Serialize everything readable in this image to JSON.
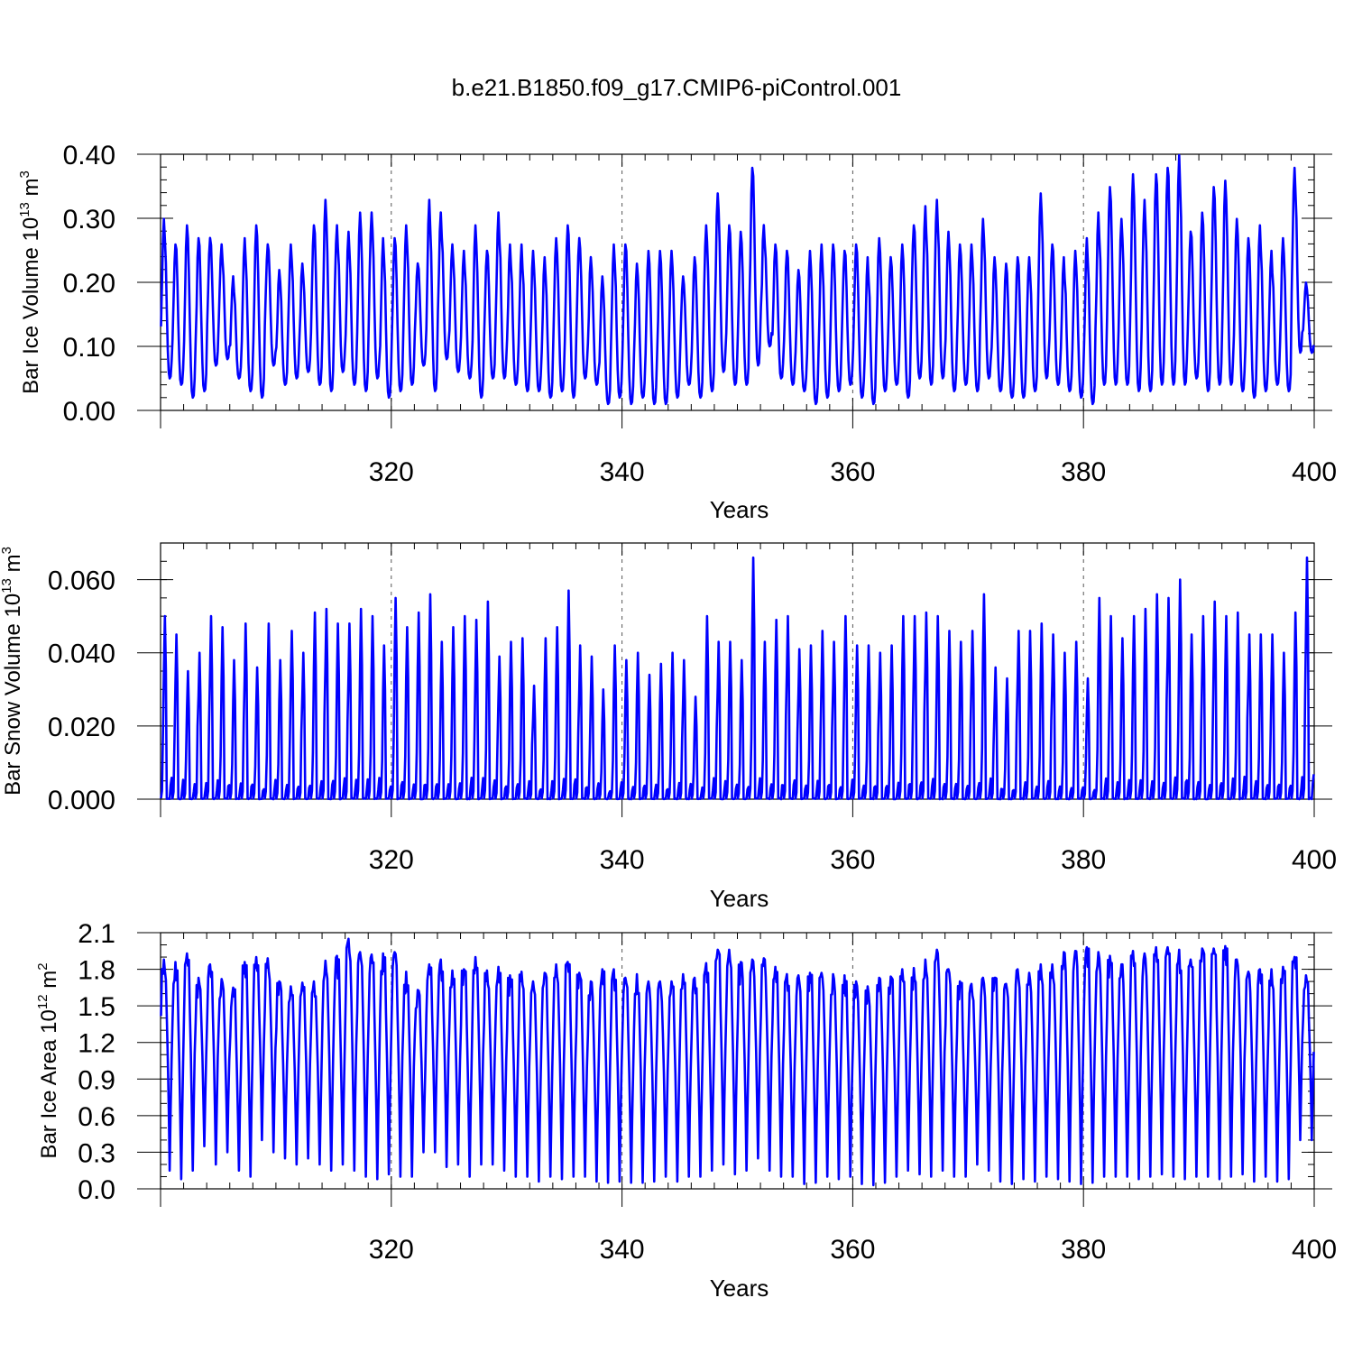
{
  "figure_title": "b.e21.B1850.f09_g17.CMIP6-piControl.001",
  "colors": {
    "series": "#0000ff",
    "axes": "#000000",
    "grid": "#555555"
  },
  "chart_data": [
    {
      "type": "line",
      "series_name": "Bar Ice Volume",
      "ylabel": {
        "base": "Bar Ice Volume 10",
        "exp": "13",
        "unit": " m",
        "unit_exp": "3"
      },
      "xlabel": "Years",
      "xlim": [
        300,
        400
      ],
      "ylim": [
        0,
        0.4
      ],
      "xticks": [
        320,
        340,
        360,
        380,
        400
      ],
      "xtick_labels": [
        "320",
        "340",
        "360",
        "380",
        "400"
      ],
      "yticks": [
        0,
        0.1,
        0.2,
        0.3,
        0.4
      ],
      "ytick_labels": [
        "0.00",
        "0.10",
        "0.20",
        "0.30",
        "0.40"
      ],
      "yminor_step": 0.02,
      "grid_x": [
        320,
        340,
        360,
        380
      ],
      "start_year": 300,
      "annual_max": [
        0.3,
        0.26,
        0.29,
        0.27,
        0.27,
        0.26,
        0.21,
        0.27,
        0.29,
        0.26,
        0.22,
        0.26,
        0.23,
        0.29,
        0.33,
        0.29,
        0.28,
        0.31,
        0.31,
        0.27,
        0.27,
        0.29,
        0.23,
        0.33,
        0.31,
        0.26,
        0.25,
        0.29,
        0.25,
        0.31,
        0.26,
        0.26,
        0.25,
        0.24,
        0.27,
        0.29,
        0.27,
        0.24,
        0.21,
        0.26,
        0.26,
        0.23,
        0.25,
        0.25,
        0.25,
        0.21,
        0.24,
        0.29,
        0.34,
        0.29,
        0.28,
        0.38,
        0.29,
        0.26,
        0.25,
        0.22,
        0.25,
        0.26,
        0.26,
        0.25,
        0.26,
        0.24,
        0.27,
        0.24,
        0.26,
        0.29,
        0.32,
        0.33,
        0.28,
        0.26,
        0.26,
        0.3,
        0.24,
        0.23,
        0.24,
        0.24,
        0.34,
        0.26,
        0.24,
        0.25,
        0.27,
        0.31,
        0.35,
        0.3,
        0.37,
        0.33,
        0.37,
        0.38,
        0.4,
        0.28,
        0.31,
        0.35,
        0.36,
        0.3,
        0.27,
        0.29,
        0.25,
        0.27,
        0.38,
        0.2
      ],
      "annual_min": [
        0.05,
        0.04,
        0.02,
        0.03,
        0.07,
        0.08,
        0.05,
        0.03,
        0.02,
        0.07,
        0.04,
        0.05,
        0.06,
        0.04,
        0.03,
        0.06,
        0.04,
        0.03,
        0.05,
        0.02,
        0.03,
        0.04,
        0.07,
        0.03,
        0.08,
        0.06,
        0.05,
        0.02,
        0.05,
        0.05,
        0.04,
        0.03,
        0.03,
        0.02,
        0.03,
        0.02,
        0.05,
        0.04,
        0.01,
        0.02,
        0.01,
        0.02,
        0.01,
        0.01,
        0.02,
        0.04,
        0.02,
        0.03,
        0.06,
        0.04,
        0.04,
        0.07,
        0.1,
        0.05,
        0.04,
        0.03,
        0.01,
        0.02,
        0.03,
        0.04,
        0.02,
        0.01,
        0.03,
        0.04,
        0.02,
        0.05,
        0.04,
        0.05,
        0.03,
        0.04,
        0.03,
        0.05,
        0.03,
        0.02,
        0.02,
        0.03,
        0.05,
        0.04,
        0.03,
        0.02,
        0.01,
        0.04,
        0.04,
        0.04,
        0.03,
        0.03,
        0.04,
        0.04,
        0.04,
        0.05,
        0.03,
        0.04,
        0.04,
        0.03,
        0.02,
        0.03,
        0.04,
        0.03,
        0.09,
        0.09
      ]
    },
    {
      "type": "line",
      "series_name": "Bar Snow Volume",
      "ylabel": {
        "base": "Bar Snow Volume 10",
        "exp": "13",
        "unit": " m",
        "unit_exp": "3"
      },
      "xlabel": "Years",
      "xlim": [
        300,
        400
      ],
      "ylim": [
        0,
        0.07
      ],
      "xticks": [
        320,
        340,
        360,
        380,
        400
      ],
      "xtick_labels": [
        "320",
        "340",
        "360",
        "380",
        "400"
      ],
      "yticks": [
        0,
        0.02,
        0.04,
        0.06
      ],
      "ytick_labels": [
        "0.000",
        "0.020",
        "0.040",
        "0.060"
      ],
      "yminor_step": 0.005,
      "grid_x": [
        320,
        340,
        360,
        380
      ],
      "start_year": 300,
      "annual_max": [
        0.05,
        0.045,
        0.035,
        0.04,
        0.05,
        0.047,
        0.038,
        0.048,
        0.036,
        0.048,
        0.038,
        0.046,
        0.04,
        0.051,
        0.052,
        0.048,
        0.048,
        0.052,
        0.05,
        0.042,
        0.055,
        0.047,
        0.051,
        0.056,
        0.043,
        0.047,
        0.05,
        0.049,
        0.054,
        0.039,
        0.043,
        0.044,
        0.031,
        0.044,
        0.047,
        0.057,
        0.042,
        0.039,
        0.03,
        0.042,
        0.038,
        0.04,
        0.034,
        0.037,
        0.04,
        0.038,
        0.028,
        0.05,
        0.043,
        0.043,
        0.038,
        0.066,
        0.043,
        0.049,
        0.05,
        0.041,
        0.042,
        0.046,
        0.043,
        0.05,
        0.042,
        0.042,
        0.04,
        0.042,
        0.05,
        0.05,
        0.051,
        0.05,
        0.046,
        0.043,
        0.046,
        0.056,
        0.036,
        0.033,
        0.046,
        0.046,
        0.048,
        0.045,
        0.04,
        0.043,
        0.033,
        0.055,
        0.05,
        0.044,
        0.05,
        0.052,
        0.056,
        0.055,
        0.06,
        0.045,
        0.05,
        0.054,
        0.05,
        0.051,
        0.045,
        0.045,
        0.045,
        0.04,
        0.051,
        0.066
      ]
    },
    {
      "type": "line",
      "series_name": "Bar Ice Area",
      "ylabel": {
        "base": "Bar Ice Area 10",
        "exp": "12",
        "unit": " m",
        "unit_exp": "2"
      },
      "xlabel": "Years",
      "xlim": [
        300,
        400
      ],
      "ylim": [
        0,
        2.1
      ],
      "xticks": [
        320,
        340,
        360,
        380,
        400
      ],
      "xtick_labels": [
        "320",
        "340",
        "360",
        "380",
        "400"
      ],
      "yticks": [
        0,
        0.3,
        0.6,
        0.9,
        1.2,
        1.5,
        1.8,
        2.1
      ],
      "ytick_labels": [
        "0.0",
        "0.3",
        "0.6",
        "0.9",
        "1.2",
        "1.5",
        "1.8",
        "2.1"
      ],
      "yminor_step": 0.1,
      "grid_x": [
        320,
        340,
        360,
        380
      ],
      "start_year": 300,
      "annual_max": [
        1.88,
        1.86,
        1.93,
        1.73,
        1.84,
        1.72,
        1.65,
        1.86,
        1.9,
        1.89,
        1.7,
        1.66,
        1.69,
        1.7,
        1.87,
        1.91,
        2.05,
        1.94,
        1.92,
        1.93,
        1.94,
        1.78,
        1.63,
        1.84,
        1.88,
        1.79,
        1.8,
        1.9,
        1.79,
        1.82,
        1.75,
        1.78,
        1.7,
        1.77,
        1.84,
        1.86,
        1.77,
        1.7,
        1.8,
        1.8,
        1.73,
        1.76,
        1.7,
        1.7,
        1.7,
        1.76,
        1.73,
        1.85,
        1.96,
        1.96,
        1.86,
        1.88,
        1.89,
        1.82,
        1.76,
        1.75,
        1.77,
        1.77,
        1.76,
        1.75,
        1.7,
        1.66,
        1.73,
        1.74,
        1.8,
        1.81,
        1.88,
        1.96,
        1.8,
        1.7,
        1.68,
        1.73,
        1.73,
        1.68,
        1.8,
        1.77,
        1.84,
        1.84,
        1.94,
        1.95,
        1.98,
        1.94,
        1.91,
        1.84,
        1.95,
        1.93,
        1.98,
        1.98,
        1.96,
        1.88,
        1.97,
        1.97,
        1.99,
        1.88,
        1.78,
        1.8,
        1.8,
        1.82,
        1.9,
        1.75
      ],
      "annual_min": [
        0.15,
        0.08,
        0.15,
        0.35,
        0.2,
        0.3,
        0.15,
        0.1,
        0.4,
        0.3,
        0.25,
        0.2,
        0.25,
        0.2,
        0.15,
        0.2,
        0.15,
        0.1,
        0.08,
        0.12,
        0.1,
        0.1,
        0.3,
        0.3,
        0.18,
        0.2,
        0.1,
        0.2,
        0.2,
        0.15,
        0.1,
        0.1,
        0.06,
        0.1,
        0.08,
        0.1,
        0.1,
        0.06,
        0.05,
        0.06,
        0.05,
        0.05,
        0.06,
        0.1,
        0.06,
        0.1,
        0.1,
        0.15,
        0.2,
        0.12,
        0.15,
        0.25,
        0.15,
        0.1,
        0.1,
        0.04,
        0.05,
        0.1,
        0.08,
        0.1,
        0.04,
        0.03,
        0.05,
        0.1,
        0.15,
        0.12,
        0.1,
        0.15,
        0.1,
        0.1,
        0.2,
        0.15,
        0.06,
        0.04,
        0.08,
        0.06,
        0.1,
        0.08,
        0.06,
        0.04,
        0.05,
        0.1,
        0.1,
        0.1,
        0.08,
        0.1,
        0.12,
        0.1,
        0.08,
        0.1,
        0.1,
        0.08,
        0.1,
        0.12,
        0.06,
        0.1,
        0.06,
        0.08,
        0.4,
        0.4
      ]
    }
  ]
}
